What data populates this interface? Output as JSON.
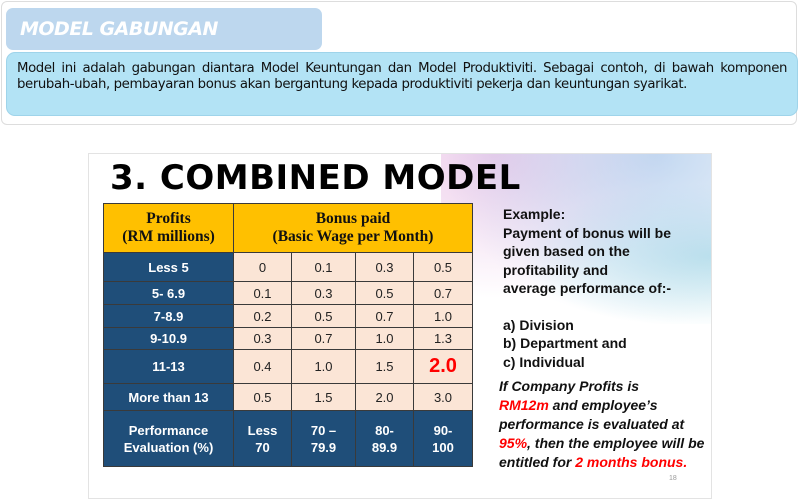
{
  "header": {
    "title": "MODEL GABUNGAN",
    "description": "Model ini adalah gabungan diantara Model Keuntungan dan Model Produktiviti. Sebagai contoh, di bawah komponen berubah-ubah, pembayaran bonus akan bergantung kepada produktiviti pekerja dan keuntungan syarikat."
  },
  "slide": {
    "title": "3. COMBINED MODEL",
    "table": {
      "header_profits": [
        "Profits",
        "(RM millions)"
      ],
      "header_bonus": [
        "Bonus paid",
        "(Basic Wage per Month)"
      ],
      "rows": [
        {
          "label": "Less 5",
          "values": [
            "0",
            "0.1",
            "0.3",
            "0.5"
          ]
        },
        {
          "label": "5- 6.9",
          "values": [
            "0.1",
            "0.3",
            "0.5",
            "0.7"
          ]
        },
        {
          "label": "7-8.9",
          "values": [
            "0.2",
            "0.5",
            "0.7",
            "1.0"
          ]
        },
        {
          "label": "9-10.9",
          "values": [
            "0.3",
            "0.7",
            "1.0",
            "1.3"
          ]
        },
        {
          "label": "11-13",
          "values": [
            "0.4",
            "1.0",
            "1.5",
            "2.0"
          ]
        },
        {
          "label": "More than 13",
          "values": [
            "0.5",
            "1.5",
            "2.0",
            "3.0"
          ]
        }
      ],
      "performance_label": [
        "Performance",
        "Evaluation (%)"
      ],
      "performance_ranges": [
        [
          "Less",
          "70"
        ],
        [
          "70 –",
          "79.9"
        ],
        [
          "80-",
          "89.9"
        ],
        [
          "90-",
          "100"
        ]
      ]
    },
    "example": {
      "heading": "Example:",
      "lines": [
        "Payment of bonus will be",
        "given based on the",
        "profitability and",
        "average performance of:-"
      ],
      "items": [
        "a) Division",
        "b) Department and",
        "c) Individual"
      ]
    },
    "conclusion": {
      "p1": "If Company Profits  is",
      "p2": "RM12m",
      "p3": " and employee’s performance is evaluated at ",
      "p4": "95%",
      "p5": ", then the employee will be entitled for ",
      "p6": "2 months bonus."
    },
    "page_number": "18"
  }
}
